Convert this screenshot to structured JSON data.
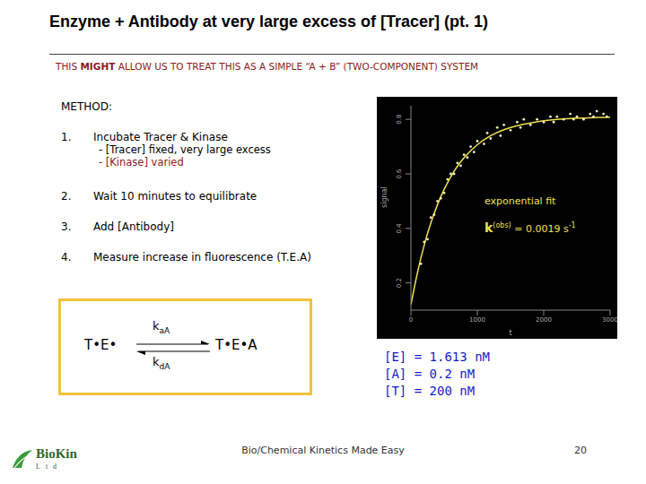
{
  "title": "Enzyme + Antibody at very large excess of [Tracer] (pt. 1)",
  "subtitle": {
    "before": "THIS ",
    "emphasis": "MIGHT",
    "after": " ALLOW US TO TREAT THIS AS A SIMPLE “A + B” (TWO-COMPONENT) SYSTEM"
  },
  "method": {
    "heading": "METHOD:",
    "steps": [
      {
        "number": "1.",
        "text": "Incubate Tracer & Kinase",
        "details": [
          "- [Tracer] fixed, very large excess",
          "- [Kinase] varied"
        ]
      },
      {
        "number": "2.",
        "text": "Wait 10 minutes to equilibrate",
        "details": []
      },
      {
        "number": "3.",
        "text": "Add [Antibody]",
        "details": []
      },
      {
        "number": "4.",
        "text": "Measure increase in fluorescence (T.E.A)",
        "details": []
      }
    ]
  },
  "scheme": {
    "reactant": "T•E•",
    "product": "T•E•A",
    "forward": {
      "symbol": "k",
      "subscript": "aA"
    },
    "reverse": {
      "symbol": "k",
      "subscript": "dA"
    }
  },
  "conditions": [
    "[E] = 1.613 nM",
    "[A] = 0.2 nM",
    "[T] = 200 nM"
  ],
  "footer": {
    "center": "Bio/Chemical Kinetics Made Easy",
    "page": "20",
    "logo": {
      "name": "BioKin",
      "suffix": "Ltd"
    }
  },
  "chart_data": {
    "type": "scatter",
    "x_label": "t",
    "y_label": "signal",
    "xlim": [
      0,
      3000
    ],
    "xticks": [
      0,
      1000,
      2000,
      3000
    ],
    "ylim": [
      0.1,
      0.85
    ],
    "yticks": [
      0.2,
      0.4,
      0.6,
      0.8
    ],
    "annotations": {
      "fit_label": "exponential fit",
      "k_obs": {
        "symbol": "k",
        "superscript": "(obs)",
        "value": "= 0.0019 s",
        "unit_superscript": "-1"
      }
    },
    "series": [
      {
        "type": "scatter",
        "color": "#f4f0b8",
        "marker": "circle",
        "x": [
          150,
          200,
          250,
          300,
          350,
          400,
          450,
          500,
          550,
          600,
          650,
          700,
          750,
          800,
          850,
          900,
          950,
          1000,
          1100,
          1150,
          1200,
          1300,
          1350,
          1400,
          1500,
          1600,
          1650,
          1700,
          1800,
          1900,
          2000,
          2100,
          2150,
          2200,
          2300,
          2400,
          2450,
          2500,
          2600,
          2700,
          2750,
          2800,
          2900,
          2950
        ],
        "values": [
          0.27,
          0.35,
          0.36,
          0.44,
          0.45,
          0.5,
          0.51,
          0.53,
          0.58,
          0.6,
          0.6,
          0.64,
          0.63,
          0.67,
          0.66,
          0.7,
          0.68,
          0.72,
          0.71,
          0.75,
          0.73,
          0.77,
          0.74,
          0.78,
          0.76,
          0.79,
          0.77,
          0.8,
          0.78,
          0.8,
          0.79,
          0.81,
          0.79,
          0.81,
          0.8,
          0.82,
          0.8,
          0.81,
          0.8,
          0.82,
          0.81,
          0.83,
          0.82,
          0.81
        ]
      },
      {
        "type": "line",
        "color": "#f0e050",
        "line_style": "solid",
        "x": [
          0,
          100,
          200,
          300,
          400,
          500,
          600,
          700,
          800,
          900,
          1000,
          1200,
          1400,
          1600,
          1800,
          2000,
          2200,
          2400,
          2600,
          2800,
          3000
        ],
        "values": [
          0.12,
          0.239,
          0.338,
          0.42,
          0.487,
          0.543,
          0.589,
          0.628,
          0.659,
          0.685,
          0.707,
          0.74,
          0.762,
          0.777,
          0.787,
          0.795,
          0.8,
          0.803,
          0.805,
          0.807,
          0.808
        ]
      }
    ]
  }
}
